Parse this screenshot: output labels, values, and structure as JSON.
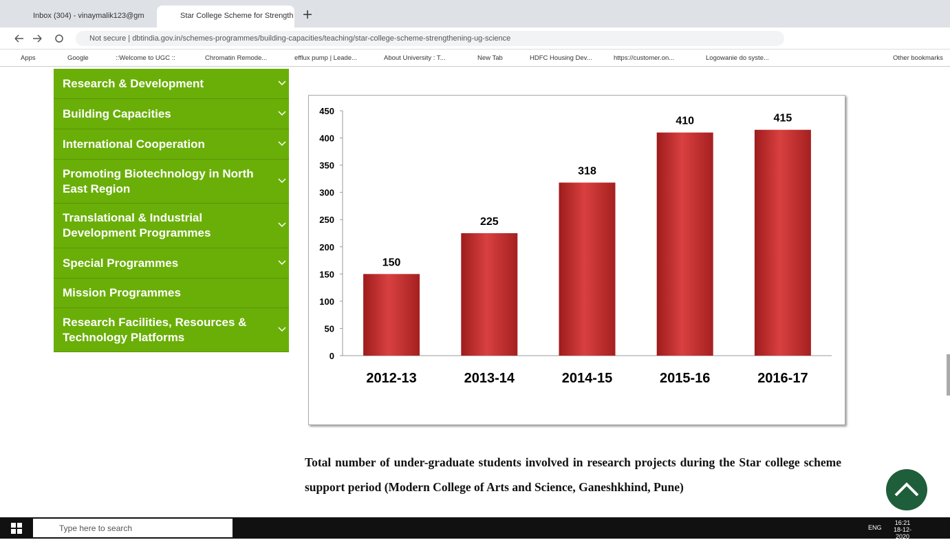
{
  "browser": {
    "tabs": [
      "Inbox (304) - vinaymalik123@gm",
      "Star College Scheme for Strength"
    ],
    "security": "Not secure",
    "url": "dbtindia.gov.in/schemes-programmes/building-capacities/teaching/star-college-scheme-strengthening-ug-science",
    "bookmarks": [
      "Apps",
      "Google",
      "::Welcome to UGC ::",
      "Chromatin Remode...",
      "efflux pump | Leade...",
      "About University : T...",
      "New Tab",
      "HDFC Housing Dev...",
      "https://customer.on...",
      "Logowanie do syste..."
    ],
    "other_bookmarks": "Other bookmarks"
  },
  "sidebar": {
    "items": [
      "Research & Development",
      "Building Capacities",
      "International Cooperation",
      "Promoting Biotechnology in North East Region",
      "Translational & Industrial Development Programmes",
      "Special Programmes",
      "Mission Programmes",
      "Research Facilities, Resources & Technology Platforms"
    ]
  },
  "chart_data": {
    "type": "bar",
    "categories": [
      "2012-13",
      "2013-14",
      "2014-15",
      "2015-16",
      "2016-17"
    ],
    "values": [
      150,
      225,
      318,
      410,
      415
    ],
    "color": "#d94040",
    "ylim": [
      0,
      450
    ],
    "yticks": [
      0,
      50,
      100,
      150,
      200,
      250,
      300,
      350,
      400,
      450
    ],
    "grid": false
  },
  "caption": "Total number of under-graduate students involved in research projects during the Star college scheme support period (Modern College of Arts and Science, Ganeshkhind, Pune)",
  "taskbar": {
    "search": "Type here to search",
    "language": "ENG",
    "time": "16:21",
    "date": "18-12-2020"
  }
}
